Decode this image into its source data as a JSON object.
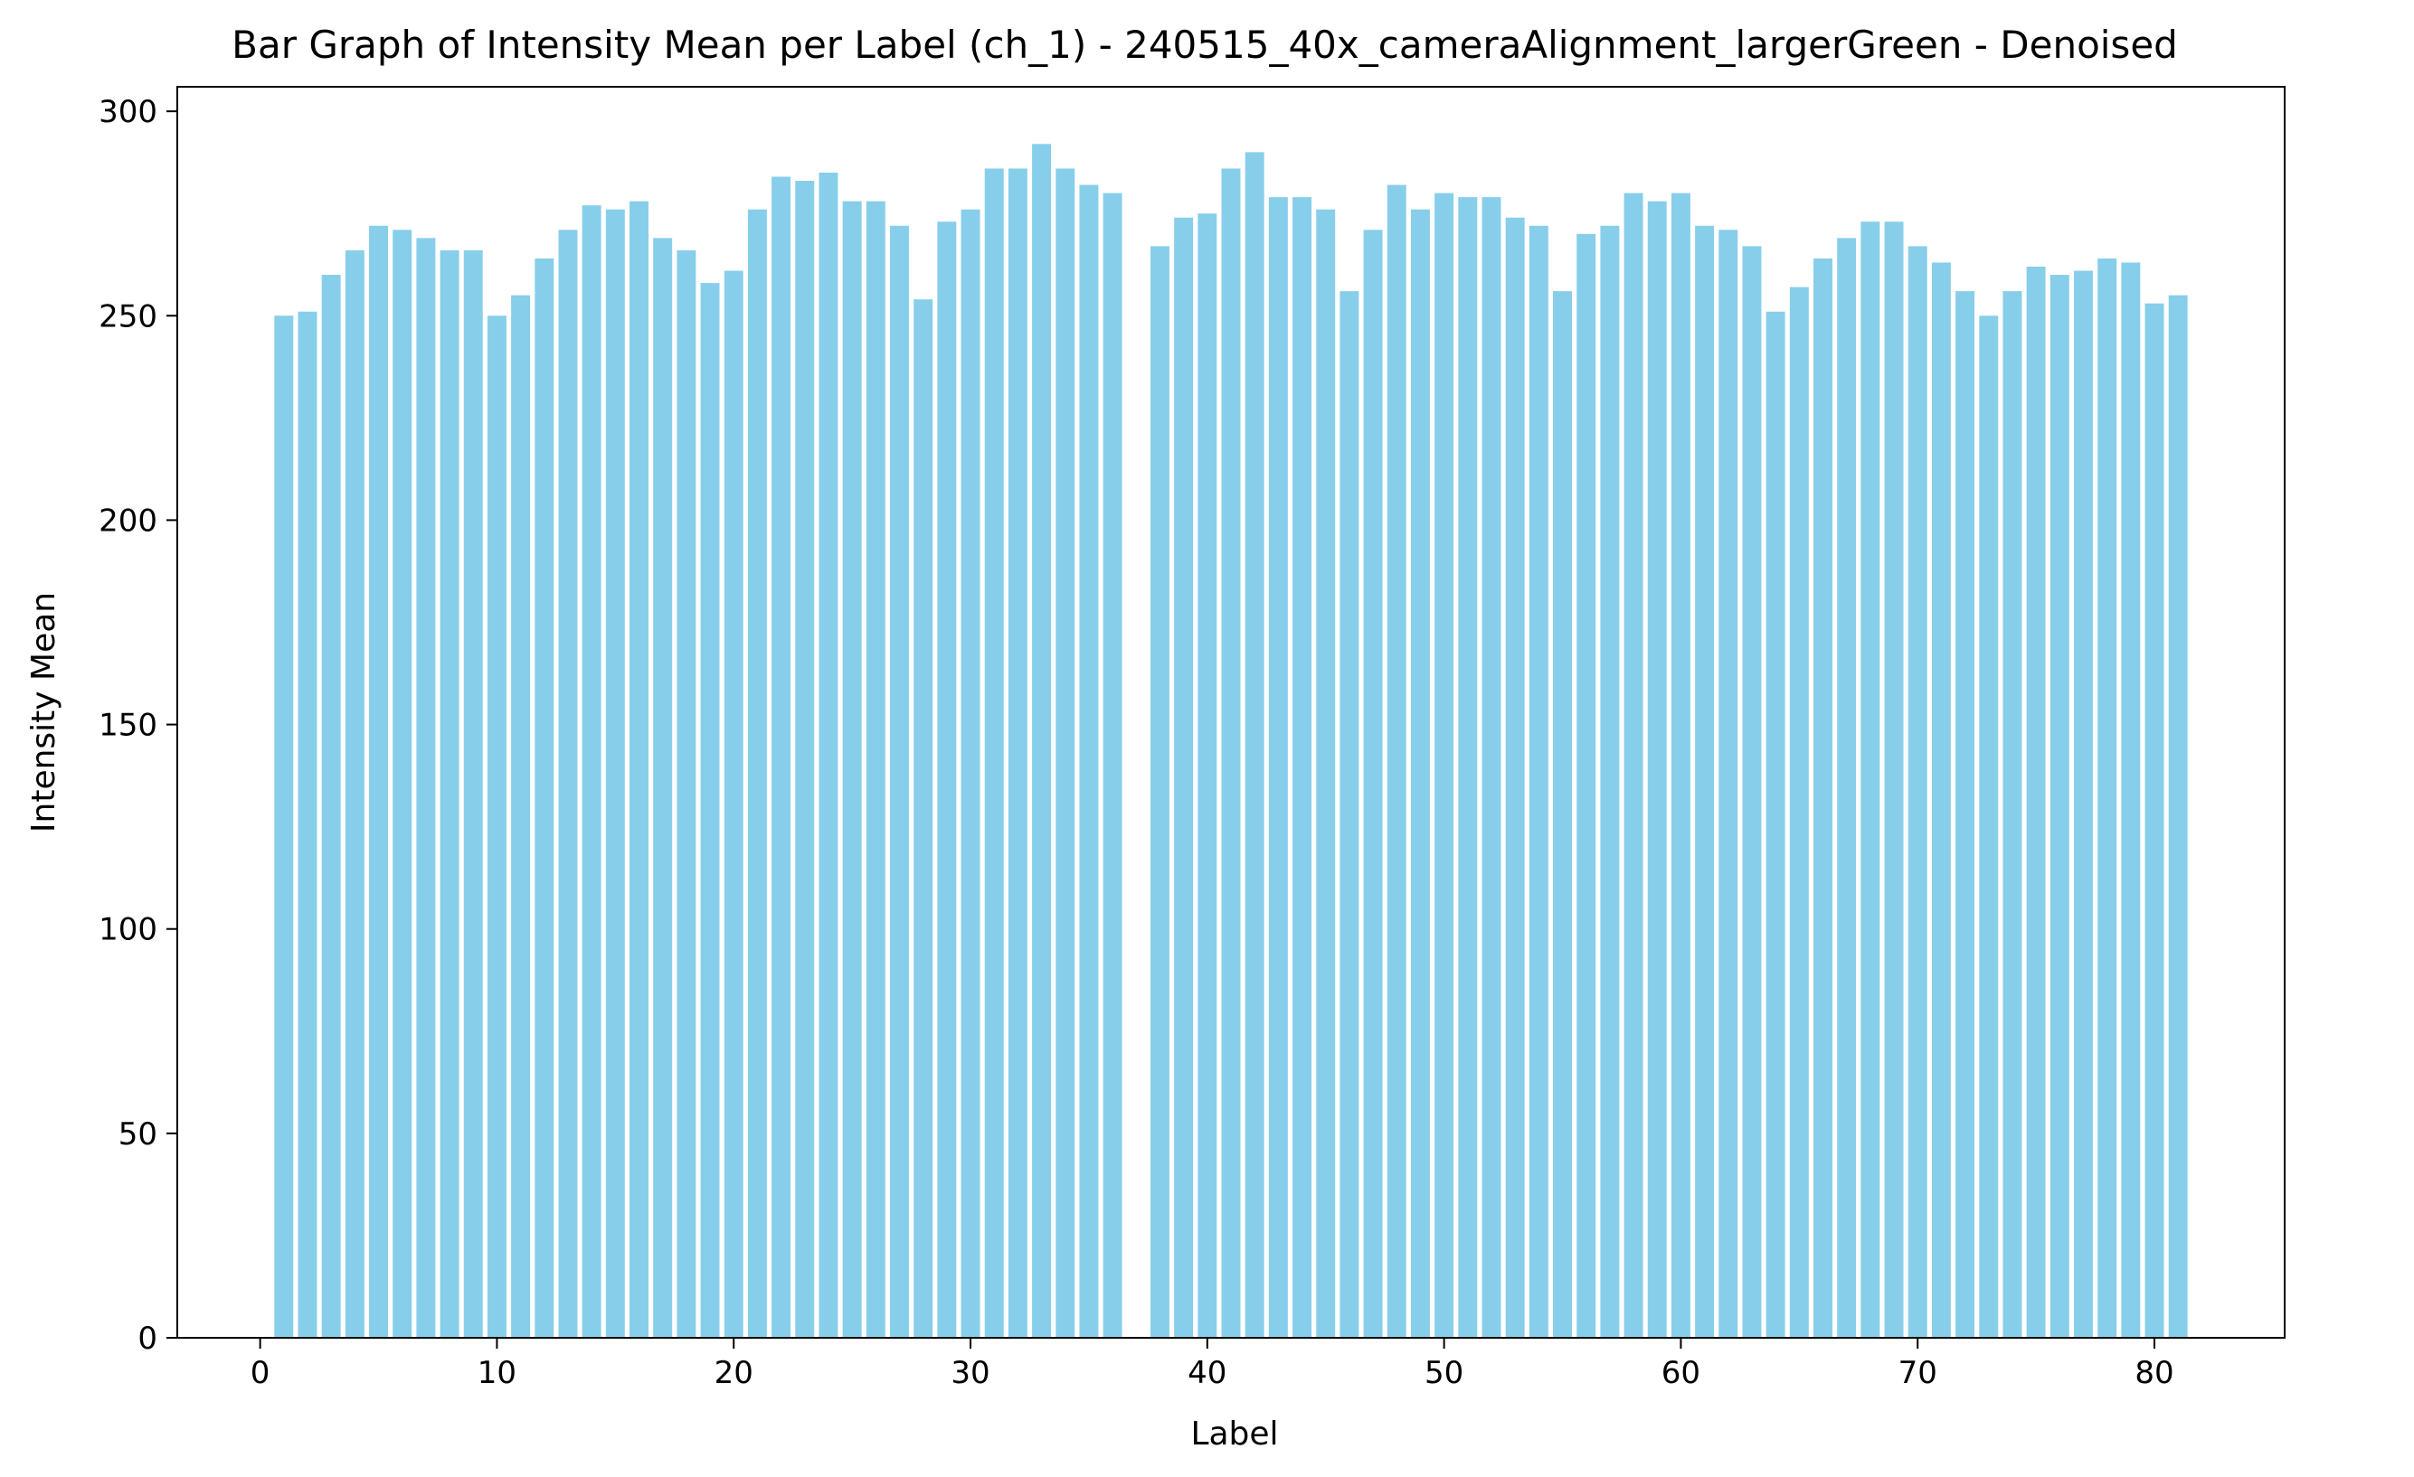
{
  "chart_data": {
    "type": "bar",
    "title": "Bar Graph of Intensity Mean per Label (ch_1) - 240515_40x_cameraAlignment_largerGreen - Denoised",
    "xlabel": "Label",
    "ylabel": "Intensity Mean",
    "xlim": [
      -3.5,
      85.5
    ],
    "ylim": [
      0,
      306
    ],
    "x_ticks": [
      0,
      10,
      20,
      30,
      40,
      50,
      60,
      70,
      80
    ],
    "y_ticks": [
      0,
      50,
      100,
      150,
      200,
      250,
      300
    ],
    "grid": false,
    "legend": "none",
    "bar_color": "#87ceeb",
    "x": [
      1,
      2,
      3,
      4,
      5,
      6,
      7,
      8,
      9,
      10,
      11,
      12,
      13,
      14,
      15,
      16,
      17,
      18,
      19,
      20,
      21,
      22,
      23,
      24,
      25,
      26,
      27,
      28,
      29,
      30,
      31,
      32,
      33,
      34,
      35,
      36,
      38,
      39,
      40,
      41,
      42,
      43,
      44,
      45,
      46,
      47,
      48,
      49,
      50,
      51,
      52,
      53,
      54,
      55,
      56,
      57,
      58,
      59,
      60,
      61,
      62,
      63,
      64,
      65,
      66,
      67,
      68,
      69,
      70,
      71,
      72,
      73,
      74,
      75,
      76,
      77,
      78,
      79,
      80,
      81
    ],
    "values": [
      250,
      251,
      260,
      266,
      272,
      271,
      269,
      266,
      266,
      250,
      255,
      264,
      271,
      277,
      276,
      278,
      269,
      266,
      258,
      261,
      276,
      284,
      283,
      285,
      278,
      278,
      272,
      254,
      273,
      276,
      286,
      286,
      292,
      286,
      282,
      280,
      267,
      274,
      275,
      286,
      290,
      279,
      279,
      276,
      256,
      271,
      282,
      276,
      280,
      279,
      279,
      274,
      272,
      256,
      270,
      272,
      280,
      278,
      280,
      272,
      271,
      267,
      251,
      257,
      264,
      269,
      273,
      273,
      267,
      263,
      256,
      250,
      256,
      262,
      260,
      261,
      264,
      263,
      253,
      255
    ]
  }
}
